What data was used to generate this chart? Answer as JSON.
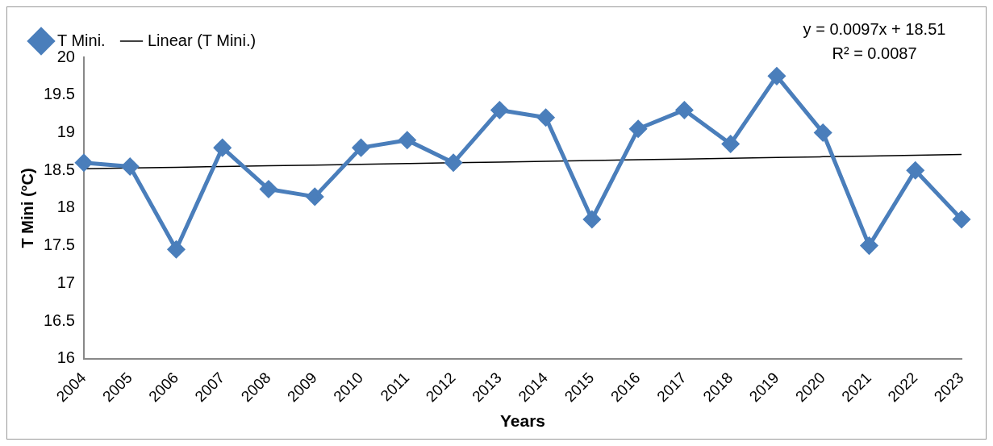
{
  "chart_data": {
    "type": "line",
    "xlabel": "Years",
    "ylabel": "T Mini (°C)",
    "categories": [
      "2004",
      "2005",
      "2006",
      "2007",
      "2008",
      "2009",
      "2010",
      "2011",
      "2012",
      "2013",
      "2014",
      "2015",
      "2016",
      "2017",
      "2018",
      "2019",
      "2020",
      "2021",
      "2022",
      "2023"
    ],
    "series": [
      {
        "name": "T Mini.",
        "color": "#4a7ebb",
        "marker": "diamond",
        "line_style": "solid",
        "values": [
          18.6,
          18.55,
          17.45,
          18.8,
          18.25,
          18.15,
          18.8,
          18.9,
          18.6,
          19.3,
          19.2,
          17.85,
          19.05,
          19.3,
          18.85,
          19.75,
          19.0,
          17.5,
          18.5,
          17.85
        ]
      },
      {
        "name": "Linear (T Mini.)",
        "type": "line",
        "color": "#000000",
        "marker": "none",
        "line_style": "solid",
        "values": [
          18.52,
          18.53,
          18.54,
          18.55,
          18.56,
          18.57,
          18.58,
          18.59,
          18.6,
          18.61,
          18.62,
          18.63,
          18.64,
          18.65,
          18.66,
          18.67,
          18.68,
          18.69,
          18.7,
          18.71
        ]
      }
    ],
    "ylim": [
      16,
      20
    ],
    "yticks": [
      16,
      16.5,
      17,
      17.5,
      18,
      18.5,
      19,
      19.5,
      20
    ],
    "grid": false,
    "legend": "top left",
    "annotations": [
      "y = 0.0097x + 18.51",
      "R² = 0.0087"
    ]
  }
}
